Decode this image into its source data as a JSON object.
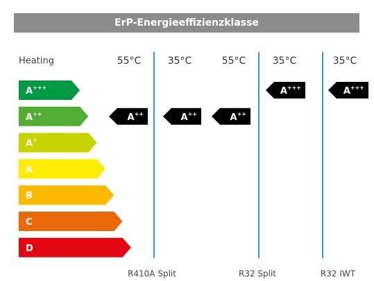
{
  "header": {
    "title": "ErP-Energieeffizienzklasse"
  },
  "scale": {
    "label": "Heating",
    "classes": [
      {
        "letter": "A",
        "sup": "+++",
        "color": "#009a44"
      },
      {
        "letter": "A",
        "sup": "++",
        "color": "#52ae32"
      },
      {
        "letter": "A",
        "sup": "+",
        "color": "#c8d400"
      },
      {
        "letter": "A",
        "color": "#ffed00"
      },
      {
        "letter": "B",
        "color": "#fbba00"
      },
      {
        "letter": "C",
        "color": "#eb6909"
      },
      {
        "letter": "D",
        "color": "#e30613"
      }
    ]
  },
  "columns": [
    {
      "temp": "55°C",
      "rating": {
        "letter": "A",
        "sup": "++"
      }
    },
    {
      "temp": "35°C",
      "rating": {
        "letter": "A",
        "sup": "++"
      }
    },
    {
      "temp": "55°C",
      "rating": {
        "letter": "A",
        "sup": "++"
      }
    },
    {
      "temp": "35°C",
      "rating": {
        "letter": "A",
        "sup": "+++"
      }
    },
    {
      "temp": "35°C",
      "rating": {
        "letter": "A",
        "sup": "+++"
      }
    }
  ],
  "groups": [
    "R410A Split",
    "R32 Split",
    "R32 IWT"
  ]
}
